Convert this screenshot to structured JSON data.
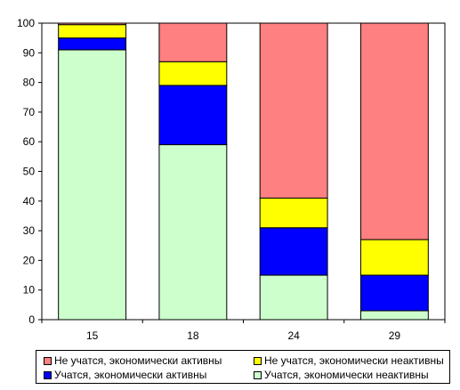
{
  "chart_data": {
    "type": "bar",
    "stacked": true,
    "categories": [
      "15",
      "18",
      "24",
      "29"
    ],
    "series": [
      {
        "name": "Учатся, экономически неактивны",
        "color": "#ccffcc",
        "values": [
          91,
          59,
          15,
          3
        ]
      },
      {
        "name": "Учатся, экономически активны",
        "color": "#0000ff",
        "values": [
          4,
          20,
          16,
          12
        ]
      },
      {
        "name": "Не учатся, экономически неактивны",
        "color": "#ffff00",
        "values": [
          4.5,
          8,
          10,
          12
        ]
      },
      {
        "name": "Не учатся, экономически активны",
        "color": "#ff8080",
        "values": [
          0.5,
          13,
          59,
          73
        ]
      }
    ],
    "ylim": [
      0,
      100
    ],
    "yticks": [
      "0",
      "10",
      "20",
      "30",
      "40",
      "50",
      "60",
      "70",
      "80",
      "90",
      "100"
    ],
    "grid": false,
    "legend_position": "bottom",
    "legend": [
      {
        "label": "Не учатся, экономически активны",
        "color": "#ff8080"
      },
      {
        "label": "Не учатся, экономически неактивны",
        "color": "#ffff00"
      },
      {
        "label": "Учатся, экономически активны",
        "color": "#0000ff"
      },
      {
        "label": "Учатся, экономически неактивны",
        "color": "#ccffcc"
      }
    ]
  }
}
